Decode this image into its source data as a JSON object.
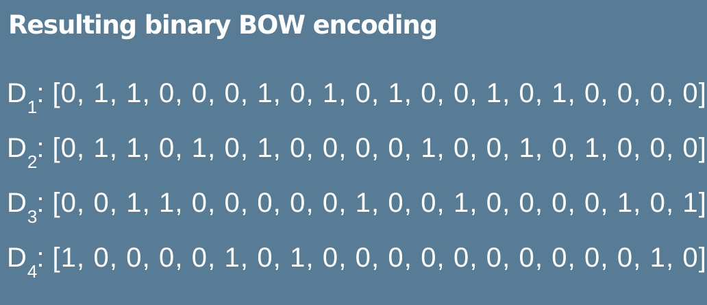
{
  "slide": {
    "title": "Resulting binary BOW encoding",
    "background": "#587b96",
    "text_color": "#ffffff"
  },
  "documents": [
    {
      "letter": "D",
      "subscript": "1",
      "colon": ":",
      "vector": "[0, 1, 1, 0, 0, 0, 1, 0, 1, 0, 1, 0, 0, 1, 0, 1, 0, 0, 0, 0]"
    },
    {
      "letter": "D",
      "subscript": "2",
      "colon": ":",
      "vector": "[0, 1, 1, 0, 1, 0, 1, 0, 0, 0, 0, 1, 0, 0, 1, 0, 1, 0, 0, 0]"
    },
    {
      "letter": "D",
      "subscript": "3",
      "colon": ":",
      "vector": "[0, 0, 1, 1, 0, 0, 0, 0, 0, 1, 0, 0, 1, 0, 0, 0, 0, 1, 0, 1]"
    },
    {
      "letter": "D",
      "subscript": "4",
      "colon": ":",
      "vector": "[1, 0, 0, 0, 0, 1, 0, 1, 0, 0, 0, 0, 0, 0, 0, 0, 0, 0, 1, 0]"
    }
  ]
}
